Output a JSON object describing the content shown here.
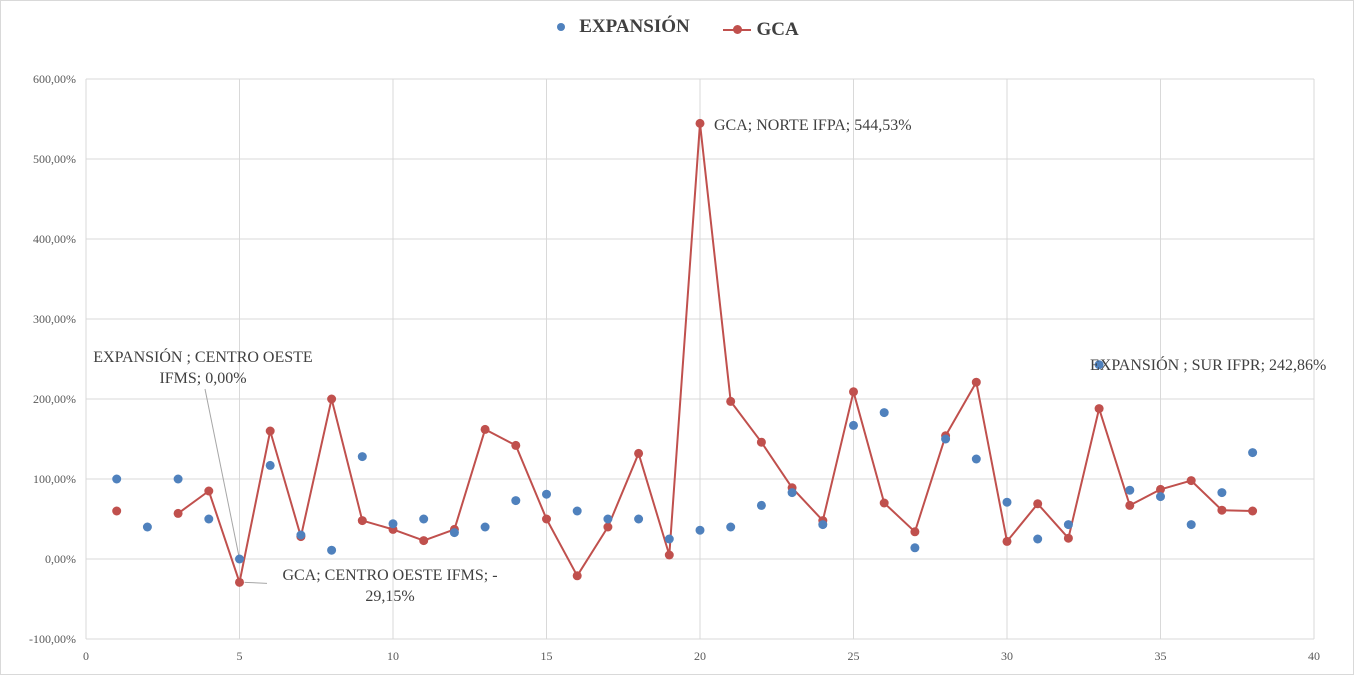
{
  "chart_data": {
    "type": "scatter",
    "x": [
      1,
      2,
      3,
      4,
      5,
      6,
      7,
      8,
      9,
      10,
      11,
      12,
      13,
      14,
      15,
      16,
      17,
      18,
      19,
      20,
      21,
      22,
      23,
      24,
      25,
      26,
      27,
      28,
      29,
      30,
      31,
      32,
      33,
      34,
      35,
      36,
      37,
      38
    ],
    "series": [
      {
        "name": "EXPANSIÓN",
        "style": "markers",
        "color": "#4f81bd",
        "values": [
          100,
          40,
          100,
          50,
          0,
          117,
          30,
          11,
          128,
          44,
          50,
          33,
          40,
          73,
          81,
          60,
          50,
          50,
          25,
          36,
          40,
          67,
          83,
          43,
          167,
          183,
          14,
          150,
          125,
          71,
          25,
          43,
          242.86,
          86,
          78,
          43,
          83,
          133
        ]
      },
      {
        "name": "GCA",
        "style": "line-markers",
        "color": "#c0504d",
        "values": [
          60,
          null,
          57,
          85,
          -29.15,
          160,
          28,
          200,
          48,
          37,
          23,
          37,
          162,
          142,
          50,
          -21,
          40,
          132,
          5,
          544.53,
          197,
          146,
          89,
          48,
          209,
          70,
          34,
          154,
          221,
          22,
          69,
          26,
          188,
          67,
          87,
          98,
          61,
          60
        ]
      }
    ],
    "xlim": [
      0,
      40
    ],
    "ylim": [
      -100,
      600
    ],
    "x_ticks": [
      0,
      5,
      10,
      15,
      20,
      25,
      30,
      35,
      40
    ],
    "y_ticks": [
      -100,
      0,
      100,
      200,
      300,
      400,
      500,
      600
    ],
    "y_tick_labels": [
      "-100,00%",
      "0,00%",
      "100,00%",
      "200,00%",
      "300,00%",
      "400,00%",
      "500,00%",
      "600,00%"
    ],
    "grid": true,
    "legend_position": "top-center",
    "title": "",
    "xlabel": "",
    "ylabel": "",
    "annotations": [
      {
        "text_lines": [
          "GCA; NORTE IFPA; 544,53%"
        ],
        "x": 20,
        "y": 544.53,
        "series": "GCA"
      },
      {
        "text_lines": [
          "EXPANSIÓN ; CENTRO OESTE",
          "IFMS; 0,00%"
        ],
        "x": 5,
        "y": 0,
        "series": "EXPANSIÓN"
      },
      {
        "text_lines": [
          "GCA; CENTRO OESTE IFMS; -",
          "29,15%"
        ],
        "x": 5,
        "y": -29.15,
        "series": "GCA"
      },
      {
        "text_lines": [
          "EXPANSIÓN ; SUR IFPR; 242,86%"
        ],
        "x": 33,
        "y": 242.86,
        "series": "EXPANSIÓN"
      }
    ]
  },
  "colors": {
    "grid": "#d9d9d9",
    "axis_text": "#595959",
    "annotation_text": "#404040",
    "leader_line": "#a6a6a6"
  }
}
